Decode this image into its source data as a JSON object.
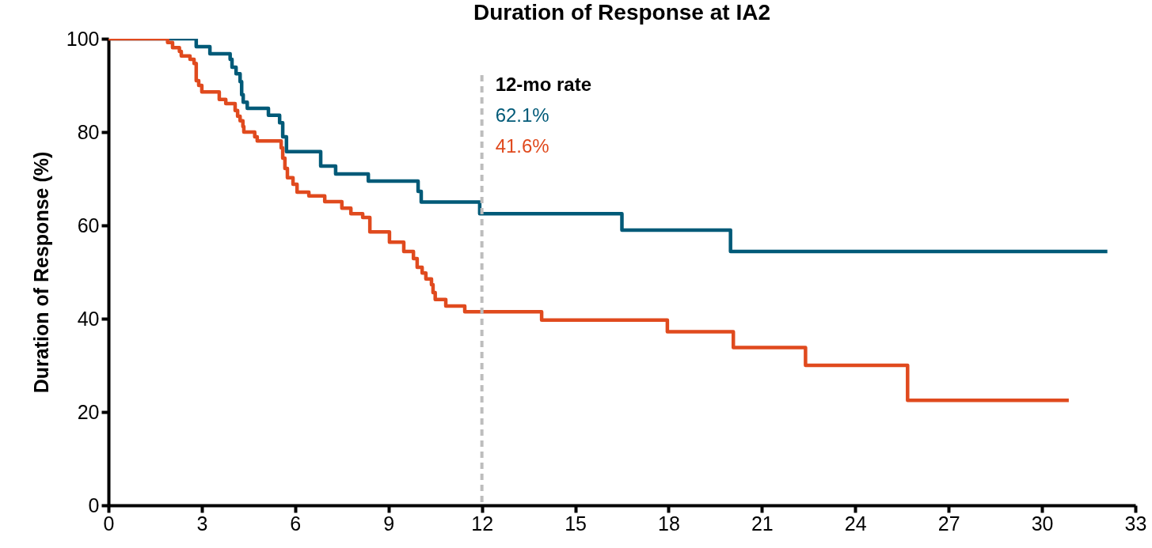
{
  "chart_data": {
    "type": "step",
    "title": "Duration of Response at IA2",
    "ylabel": "Duration of Response (%)",
    "xlim": [
      0,
      33
    ],
    "xticks": [
      0,
      3,
      6,
      9,
      12,
      15,
      18,
      21,
      24,
      27,
      30,
      33
    ],
    "ylim": [
      0,
      100
    ],
    "yticks": [
      0,
      20,
      40,
      60,
      80,
      100
    ],
    "grid": false,
    "line_style": "solid",
    "marker": "none",
    "ref_lines": [
      {
        "axis": "x",
        "value": 12,
        "label": "12-mo rate",
        "color": "#bdbdbd",
        "line_style": "dashed"
      }
    ],
    "annotations": [
      "62.1%",
      "41.6%"
    ],
    "series": [
      {
        "color": "#005a78",
        "x": [
          0,
          2.82,
          3.26,
          3.91,
          3.97,
          4.1,
          4.23,
          4.28,
          4.33,
          4.46,
          5.14,
          5.5,
          5.6,
          5.72,
          6.82,
          7.3,
          8.35,
          9.95,
          10.05,
          11.93,
          16.5,
          19.99,
          32.1
        ],
        "values": [
          100,
          98.3,
          96.8,
          95.6,
          93.9,
          92.5,
          90.8,
          88,
          86.4,
          85.1,
          83.6,
          82,
          79,
          75.8,
          72.7,
          71,
          69.5,
          67.3,
          65,
          62.5,
          59,
          54.4,
          54.4
        ]
      },
      {
        "color": "#e04a1e",
        "x": [
          0,
          1.9,
          2.06,
          2.28,
          2.34,
          2.62,
          2.75,
          2.82,
          2.9,
          3.0,
          3.56,
          3.77,
          4.07,
          4.15,
          4.23,
          4.32,
          4.35,
          4.7,
          4.78,
          5.55,
          5.6,
          5.67,
          5.75,
          5.93,
          6.06,
          6.44,
          6.95,
          7.5,
          7.79,
          8.17,
          8.4,
          9.03,
          9.49,
          9.8,
          9.92,
          10.08,
          10.2,
          10.38,
          10.43,
          10.5,
          10.84,
          11.45,
          13.92,
          17.96,
          20.08,
          22.4,
          25.68,
          30.86
        ],
        "values": [
          100,
          99.2,
          98.1,
          97.3,
          96.3,
          95.6,
          94.7,
          91,
          90,
          88.6,
          87,
          86.1,
          84.6,
          83.4,
          82.4,
          81.2,
          80,
          79,
          78.1,
          76.6,
          74.4,
          72.2,
          70.2,
          68.8,
          67.1,
          66.3,
          65.1,
          63.7,
          62.5,
          61.7,
          58.6,
          56.4,
          54.4,
          52.9,
          51,
          49.8,
          48.5,
          47.3,
          45.6,
          44.1,
          42.7,
          41.5,
          39.7,
          37.2,
          33.8,
          30,
          22.5,
          22.5
        ]
      }
    ]
  }
}
